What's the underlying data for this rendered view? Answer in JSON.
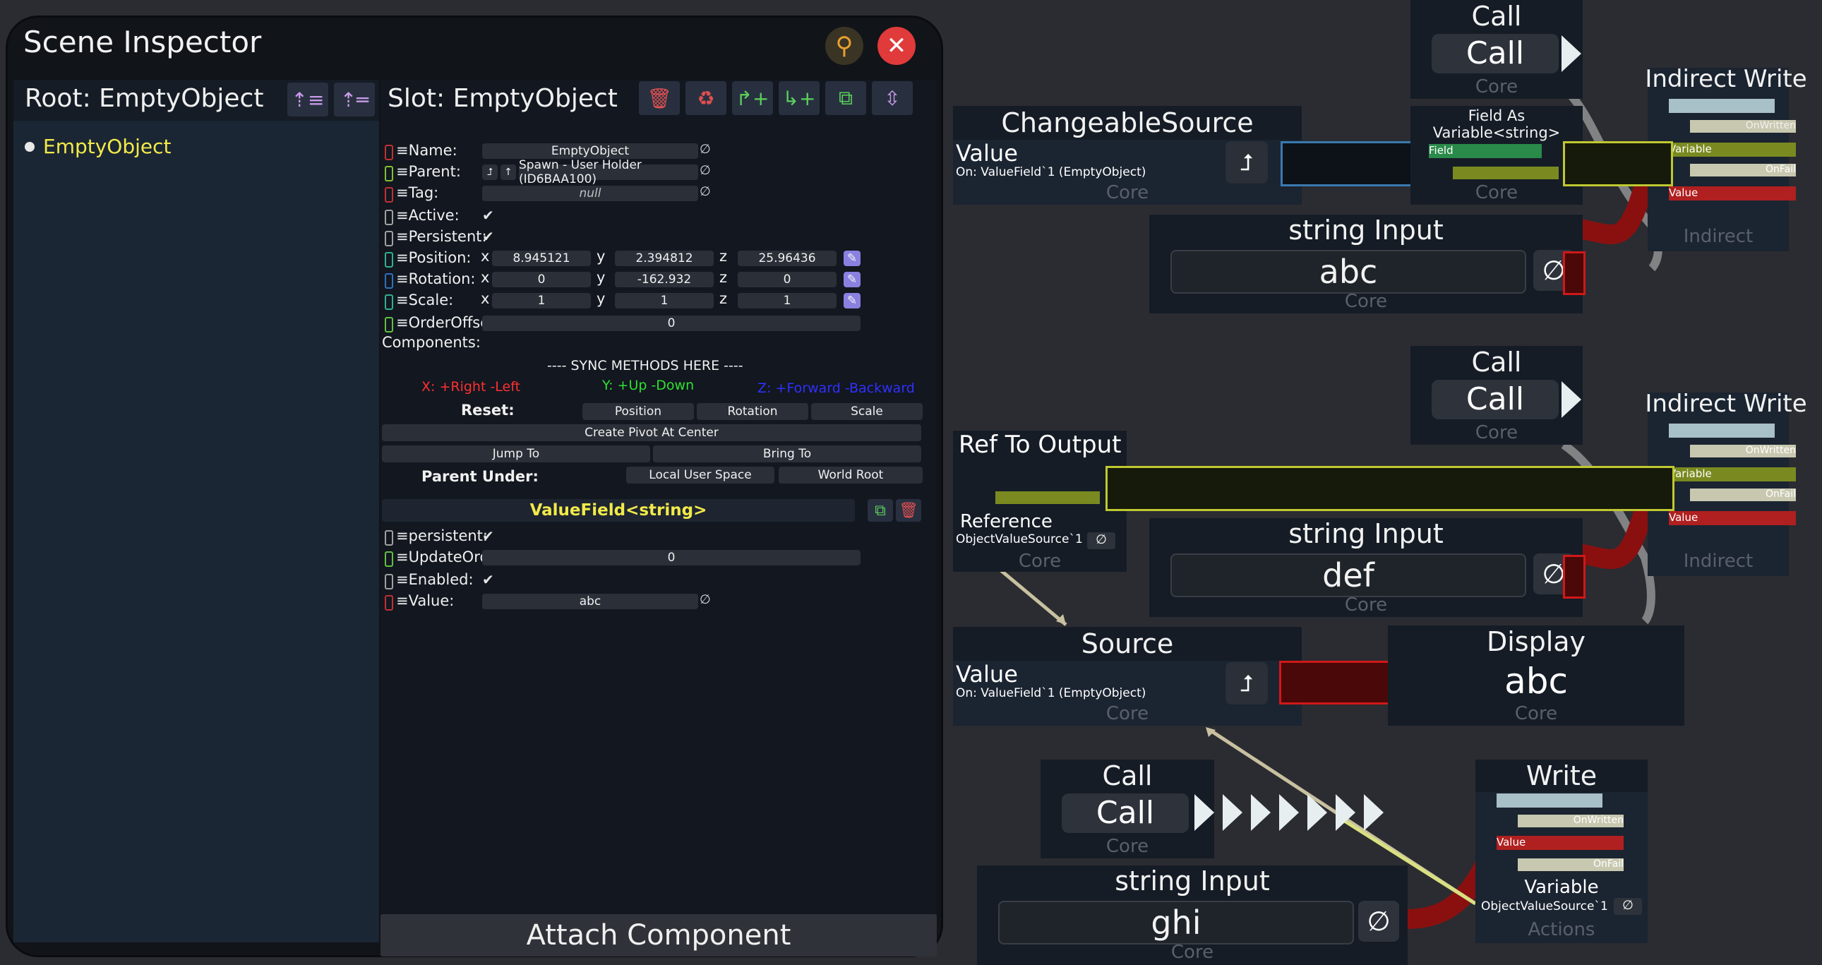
{
  "inspector": {
    "title": "Scene Inspector",
    "icons": {
      "locate": "pin-icon",
      "close": "close-icon"
    },
    "root_label": "Root: EmptyObject",
    "tree": [
      {
        "label": "EmptyObject"
      }
    ],
    "slot_label": "Slot: EmptyObject",
    "fields": {
      "name": {
        "label": "Name:",
        "value": "EmptyObject"
      },
      "parent": {
        "label": "Parent:",
        "value": "Spawn - User Holder (ID6BAA100)"
      },
      "tag": {
        "label": "Tag:",
        "value": "null"
      },
      "active": {
        "label": "Active:",
        "value": "✔"
      },
      "persistent": {
        "label": "Persistent:",
        "value": "✔"
      },
      "position": {
        "label": "Position:",
        "x": "8.945121",
        "y": "2.394812",
        "z": "25.96436"
      },
      "rotation": {
        "label": "Rotation:",
        "x": "0",
        "y": "-162.932",
        "z": "0"
      },
      "scale": {
        "label": "Scale:",
        "x": "1",
        "y": "1",
        "z": "1"
      },
      "order_offset": {
        "label": "OrderOffset:",
        "value": "0"
      }
    },
    "components_label": "Components:",
    "sync_header": "---- SYNC METHODS HERE ----",
    "axis_hints": {
      "x": "X: +Right -Left",
      "y": "Y: +Up -Down",
      "z": "Z: +Forward -Backward"
    },
    "reset_label": "Reset:",
    "reset_buttons": [
      "Position",
      "Rotation",
      "Scale"
    ],
    "create_pivot": "Create Pivot At Center",
    "jump_to": "Jump To",
    "bring_to": "Bring To",
    "parent_under_label": "Parent Under:",
    "parent_under_buttons": [
      "Local User Space",
      "World Root"
    ],
    "component": {
      "title": "ValueField<string>",
      "persistent": {
        "label": "persistent:",
        "value": "✔"
      },
      "update_order": {
        "label": "UpdateOrder:",
        "value": "0"
      },
      "enabled": {
        "label": "Enabled:",
        "value": "✔"
      },
      "value": {
        "label": "Value:",
        "value": "abc"
      }
    },
    "attach_component": "Attach Component",
    "null_symbol": "∅",
    "axis_letters": {
      "x": "x",
      "y": "y",
      "z": "z"
    }
  },
  "nodes": {
    "call": "Call",
    "core": "Core",
    "actions": "Actions",
    "indirect_write": "Indirect Write",
    "indirect": "Indirect",
    "on_written": "OnWritten",
    "on_fail": "OnFail",
    "variable": "Variable",
    "value": "Value",
    "changeable_source": "ChangeableSource",
    "on_valuefield": "On: ValueField`1 (EmptyObject)",
    "field_as_variable": "Field As Variable<string>",
    "field": "Field",
    "string_input": "string Input",
    "inputs": [
      "abc",
      "def",
      "ghi"
    ],
    "ref_to_output": "Ref To Output",
    "reference": "Reference",
    "object_value_source": "ObjectValueSource`1",
    "source": "Source",
    "display": "Display",
    "display_value": "abc",
    "write": "Write"
  },
  "colors": {
    "accent_yellow": "#e8e04a",
    "danger_red": "#e03030",
    "node_header": "#151c26",
    "node_body": "#1b2431"
  }
}
